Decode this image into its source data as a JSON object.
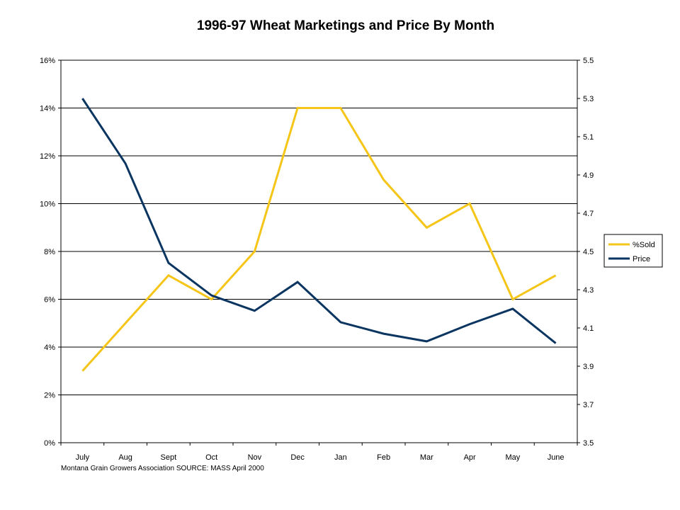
{
  "chart_data": {
    "type": "line",
    "title": "1996-97 Wheat Marketings and Price By Month",
    "footnote": "Montana Grain Growers Association  SOURCE:  MASS  April 2000",
    "categories": [
      "July",
      "Aug",
      "Sept",
      "Oct",
      "Nov",
      "Dec",
      "Jan",
      "Feb",
      "Mar",
      "Apr",
      "May",
      "June"
    ],
    "y_left": {
      "ylim": [
        0,
        16
      ],
      "ticks": [
        0,
        2,
        4,
        6,
        8,
        10,
        12,
        14,
        16
      ],
      "tick_labels": [
        "0%",
        "2%",
        "4%",
        "6%",
        "8%",
        "10%",
        "12%",
        "14%",
        "16%"
      ],
      "grid": true
    },
    "y_right": {
      "ylim": [
        3.5,
        5.5
      ],
      "ticks": [
        3.5,
        3.7,
        3.9,
        4.1,
        4.3,
        4.5,
        4.7,
        4.9,
        5.1,
        5.3,
        5.5
      ],
      "tick_labels": [
        "3.5",
        "3.7",
        "3.9",
        "4.1",
        "4.3",
        "4.5",
        "4.7",
        "4.9",
        "5.1",
        "5.3",
        "5.5"
      ]
    },
    "series": [
      {
        "name": "%Sold",
        "axis": "left",
        "color": "#F5C518",
        "values": [
          3.0,
          5.0,
          7.0,
          6.0,
          8.0,
          14.0,
          14.0,
          11.0,
          9.0,
          10.0,
          6.0,
          7.0
        ]
      },
      {
        "name": "Price",
        "axis": "right",
        "color": "#0B3561",
        "values": [
          5.3,
          4.96,
          4.44,
          4.27,
          4.19,
          4.34,
          4.13,
          4.07,
          4.03,
          4.12,
          4.2,
          4.02
        ]
      }
    ],
    "legend": {
      "position": "right"
    }
  }
}
